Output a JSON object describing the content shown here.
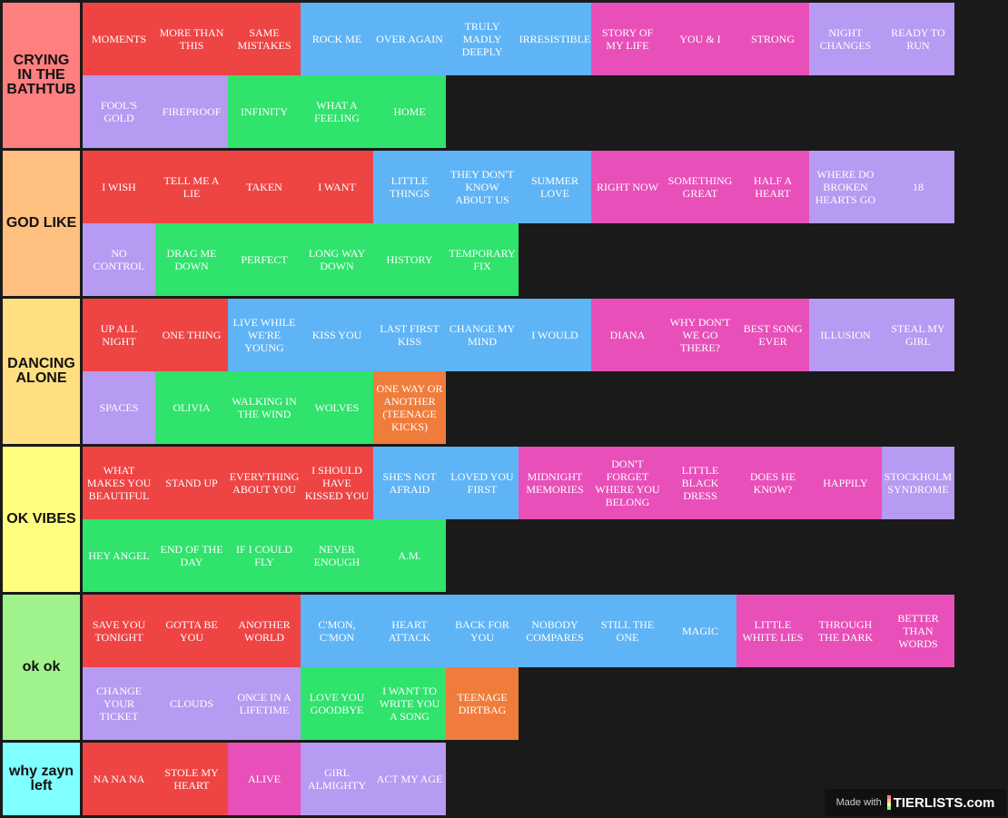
{
  "tiers": [
    {
      "label": "CRYING IN THE BATHTUB",
      "color": "#ff7f7f",
      "items": [
        {
          "text": "MOMENTS",
          "color": "red"
        },
        {
          "text": "MORE THAN THIS",
          "color": "red"
        },
        {
          "text": "SAME MISTAKES",
          "color": "red"
        },
        {
          "text": "ROCK ME",
          "color": "blue"
        },
        {
          "text": "OVER AGAIN",
          "color": "blue"
        },
        {
          "text": "TRULY MADLY DEEPLY",
          "color": "blue"
        },
        {
          "text": "IRRESISTIBLE",
          "color": "blue"
        },
        {
          "text": "STORY OF MY LIFE",
          "color": "pink"
        },
        {
          "text": "YOU & I",
          "color": "pink"
        },
        {
          "text": "STRONG",
          "color": "pink"
        },
        {
          "text": "NIGHT CHANGES",
          "color": "lav"
        },
        {
          "text": "READY TO RUN",
          "color": "lav"
        },
        {
          "text": "FOOL'S GOLD",
          "color": "lav"
        },
        {
          "text": "FIREPROOF",
          "color": "lav"
        },
        {
          "text": "INFINITY",
          "color": "green"
        },
        {
          "text": "WHAT A FEELING",
          "color": "green"
        },
        {
          "text": "HOME",
          "color": "green"
        }
      ]
    },
    {
      "label": "GOD LIKE",
      "color": "#ffbf7f",
      "items": [
        {
          "text": "I WISH",
          "color": "red"
        },
        {
          "text": "TELL ME A LIE",
          "color": "red"
        },
        {
          "text": "TAKEN",
          "color": "red"
        },
        {
          "text": "I WANT",
          "color": "red"
        },
        {
          "text": "LITTLE THINGS",
          "color": "blue"
        },
        {
          "text": "THEY DON'T KNOW ABOUT US",
          "color": "blue"
        },
        {
          "text": "SUMMER LOVE",
          "color": "blue"
        },
        {
          "text": "RIGHT NOW",
          "color": "pink"
        },
        {
          "text": "SOMETHING GREAT",
          "color": "pink"
        },
        {
          "text": "HALF A HEART",
          "color": "pink"
        },
        {
          "text": "WHERE DO BROKEN HEARTS GO",
          "color": "lav"
        },
        {
          "text": "18",
          "color": "lav"
        },
        {
          "text": "NO CONTROL",
          "color": "lav"
        },
        {
          "text": "DRAG ME DOWN",
          "color": "green"
        },
        {
          "text": "PERFECT",
          "color": "green"
        },
        {
          "text": "LONG WAY DOWN",
          "color": "green"
        },
        {
          "text": "HISTORY",
          "color": "green"
        },
        {
          "text": "TEMPORARY FIX",
          "color": "green"
        }
      ]
    },
    {
      "label": "DANCING ALONE",
      "color": "#ffdf80",
      "items": [
        {
          "text": "UP ALL NIGHT",
          "color": "red"
        },
        {
          "text": "ONE THING",
          "color": "red"
        },
        {
          "text": "LIVE WHILE WE'RE YOUNG",
          "color": "blue"
        },
        {
          "text": "KISS YOU",
          "color": "blue"
        },
        {
          "text": "LAST FIRST KISS",
          "color": "blue"
        },
        {
          "text": "CHANGE MY MIND",
          "color": "blue"
        },
        {
          "text": "I WOULD",
          "color": "blue"
        },
        {
          "text": "DIANA",
          "color": "pink"
        },
        {
          "text": "WHY DON'T WE GO THERE?",
          "color": "pink"
        },
        {
          "text": "BEST SONG EVER",
          "color": "pink"
        },
        {
          "text": "ILLUSION",
          "color": "lav"
        },
        {
          "text": "STEAL MY GIRL",
          "color": "lav"
        },
        {
          "text": "SPACES",
          "color": "lav"
        },
        {
          "text": "OLIVIA",
          "color": "green"
        },
        {
          "text": "WALKING IN THE WIND",
          "color": "green"
        },
        {
          "text": "WOLVES",
          "color": "green"
        },
        {
          "text": "ONE WAY OR ANOTHER (TEENAGE KICKS)",
          "color": "orange"
        }
      ]
    },
    {
      "label": "OK VIBES",
      "color": "#ffff7f",
      "items": [
        {
          "text": "WHAT MAKES YOU BEAUTIFUL",
          "color": "red"
        },
        {
          "text": "STAND UP",
          "color": "red"
        },
        {
          "text": "EVERYTHING ABOUT YOU",
          "color": "red"
        },
        {
          "text": "I SHOULD HAVE KISSED YOU",
          "color": "red"
        },
        {
          "text": "SHE'S NOT AFRAID",
          "color": "blue"
        },
        {
          "text": "LOVED YOU FIRST",
          "color": "blue"
        },
        {
          "text": "MIDNIGHT MEMORIES",
          "color": "pink"
        },
        {
          "text": "DON'T FORGET WHERE YOU BELONG",
          "color": "pink"
        },
        {
          "text": "LITTLE BLACK DRESS",
          "color": "pink"
        },
        {
          "text": "DOES HE KNOW?",
          "color": "pink"
        },
        {
          "text": "HAPPILY",
          "color": "pink"
        },
        {
          "text": "STOCKHOLM SYNDROME",
          "color": "lav"
        },
        {
          "text": "HEY ANGEL",
          "color": "green"
        },
        {
          "text": "END OF THE DAY",
          "color": "green"
        },
        {
          "text": "IF I COULD FLY",
          "color": "green"
        },
        {
          "text": "NEVER ENOUGH",
          "color": "green"
        },
        {
          "text": "A.M.",
          "color": "green"
        }
      ]
    },
    {
      "label": "ok ok",
      "color": "#a0f28c",
      "items": [
        {
          "text": "SAVE YOU TONIGHT",
          "color": "red"
        },
        {
          "text": "GOTTA BE YOU",
          "color": "red"
        },
        {
          "text": "ANOTHER WORLD",
          "color": "red"
        },
        {
          "text": "C'MON, C'MON",
          "color": "blue"
        },
        {
          "text": "HEART ATTACK",
          "color": "blue"
        },
        {
          "text": "BACK FOR YOU",
          "color": "blue"
        },
        {
          "text": "NOBODY COMPARES",
          "color": "blue"
        },
        {
          "text": "STILL THE ONE",
          "color": "blue"
        },
        {
          "text": "MAGIC",
          "color": "blue"
        },
        {
          "text": "LITTLE WHITE LIES",
          "color": "pink"
        },
        {
          "text": "THROUGH THE DARK",
          "color": "pink"
        },
        {
          "text": "BETTER THAN WORDS",
          "color": "pink"
        },
        {
          "text": "CHANGE YOUR TICKET",
          "color": "lav"
        },
        {
          "text": "CLOUDS",
          "color": "lav"
        },
        {
          "text": "ONCE IN A LIFETIME",
          "color": "lav"
        },
        {
          "text": "LOVE YOU GOODBYE",
          "color": "green"
        },
        {
          "text": "I WANT TO WRITE YOU A SONG",
          "color": "green"
        },
        {
          "text": "TEENAGE DIRTBAG",
          "color": "orange"
        }
      ]
    },
    {
      "label": "why zayn left",
      "color": "#7fffff",
      "items": [
        {
          "text": "NA NA NA",
          "color": "red"
        },
        {
          "text": "STOLE MY HEART",
          "color": "red"
        },
        {
          "text": "ALIVE",
          "color": "pink"
        },
        {
          "text": "GIRL ALMIGHTY",
          "color": "lav"
        },
        {
          "text": "ACT MY AGE",
          "color": "lav"
        }
      ]
    }
  ],
  "watermark": {
    "made_with": "Made with",
    "brand": "TIERLISTS.com"
  },
  "colors": {
    "red": "#ef4444",
    "blue": "#5fb4f5",
    "pink": "#e84fb9",
    "lav": "#b79af2",
    "green": "#2fe36c",
    "orange": "#f07c3b",
    "background": "#1a1a1a"
  }
}
